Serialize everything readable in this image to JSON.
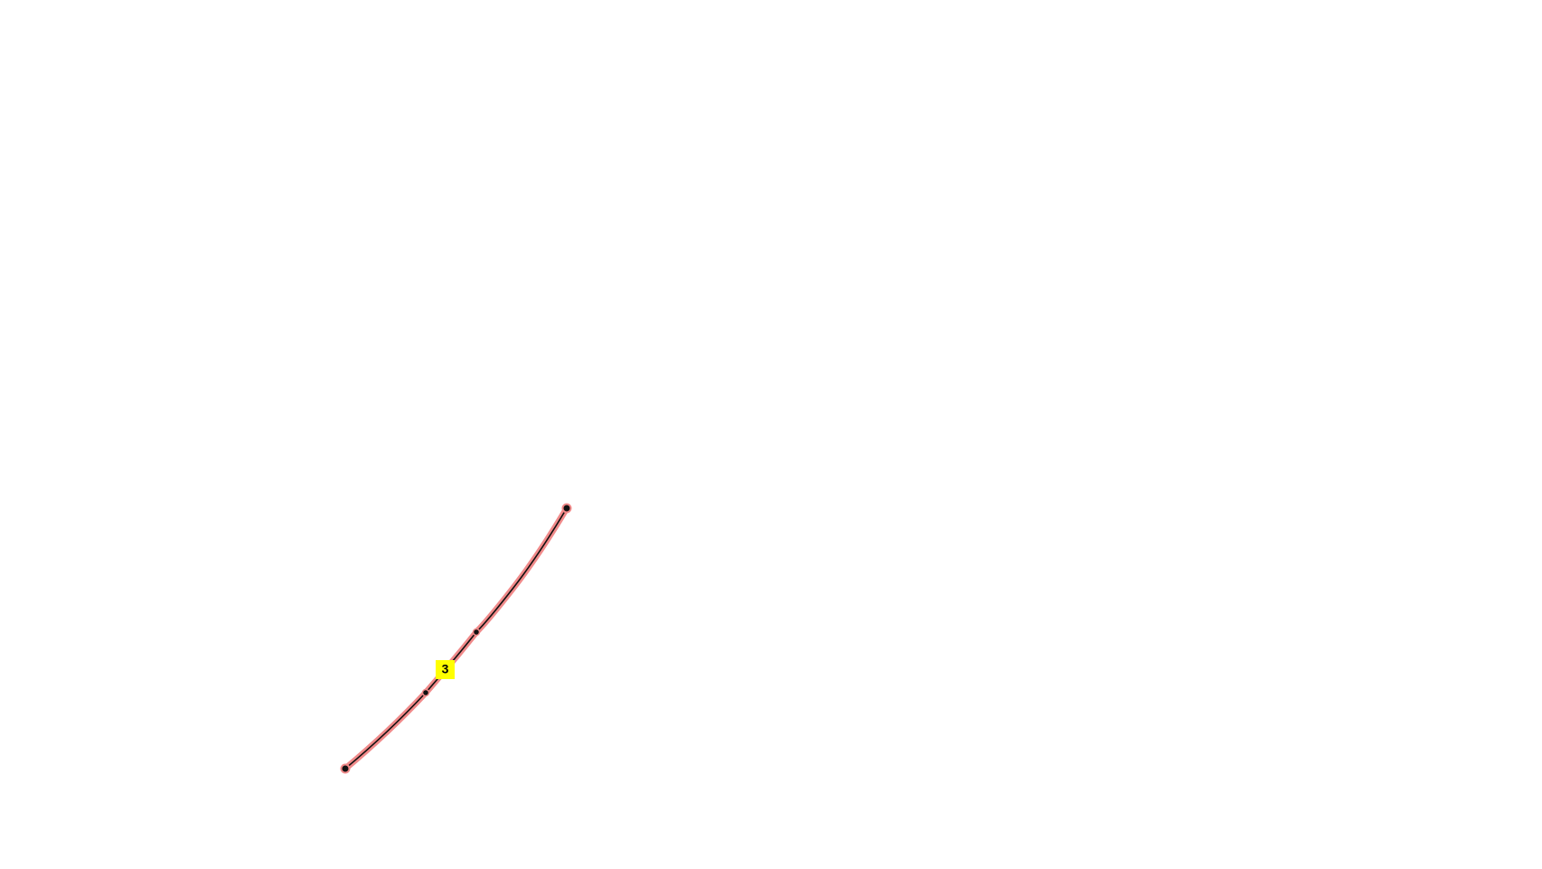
{
  "annotation": {
    "label": "3"
  }
}
